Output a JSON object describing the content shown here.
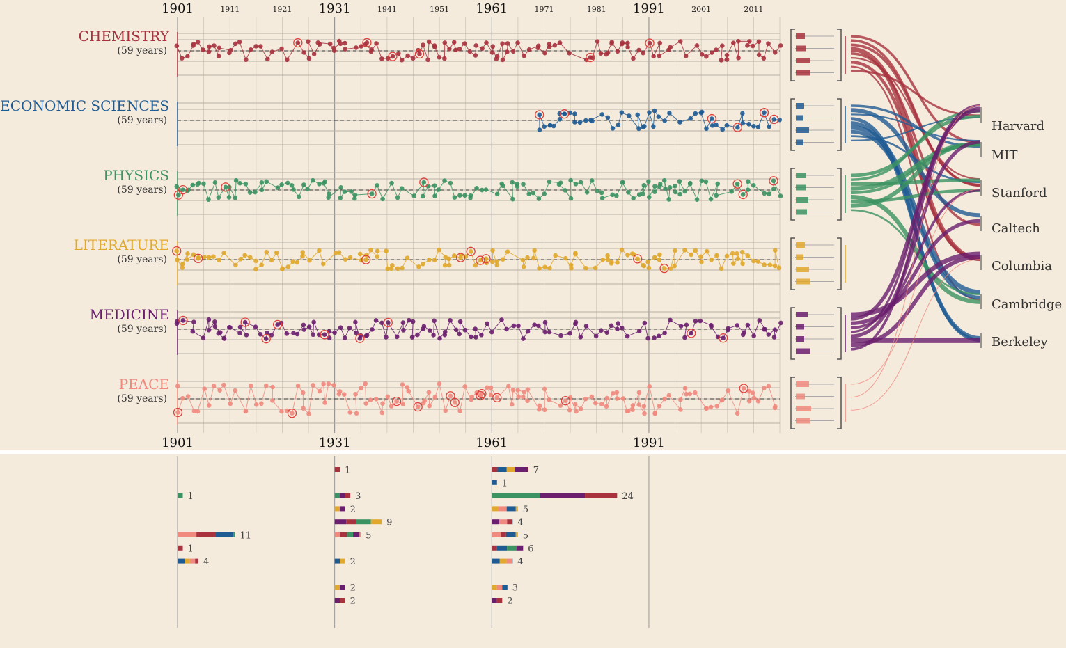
{
  "chart_data": [
    {
      "type": "scatter",
      "year_axis": {
        "start": 1901,
        "end": 2016,
        "major_ticks": [
          "1901",
          "1931",
          "1961",
          "1991"
        ],
        "minor_ticks": [
          "1911",
          "1921",
          "1941",
          "1951",
          "1971",
          "1981",
          "2001",
          "2011"
        ]
      },
      "categories": [
        {
          "name": "CHEMISTRY",
          "subtitle": "(59 years)",
          "color": "#a8323e",
          "start_year": 1901
        },
        {
          "name": "ECONOMIC SCIENCES",
          "subtitle": "(59 years)",
          "color": "#1f5b93",
          "start_year": 1969
        },
        {
          "name": "PHYSICS",
          "subtitle": "(59 years)",
          "color": "#3b9262",
          "start_year": 1901
        },
        {
          "name": "LITERATURE",
          "subtitle": "(59 years)",
          "color": "#e0a82e",
          "start_year": 1901
        },
        {
          "name": "MEDICINE",
          "subtitle": "(59 years)",
          "color": "#6a1f6e",
          "start_year": 1901
        },
        {
          "name": "PEACE",
          "subtitle": "(59 years)",
          "color": "#f08a7e",
          "start_year": 1901
        }
      ]
    },
    {
      "type": "sankey",
      "institutions": [
        "Harvard",
        "MIT",
        "Stanford",
        "Caltech",
        "Columbia",
        "Cambridge",
        "Berkeley"
      ]
    },
    {
      "type": "bar",
      "orientation": "horizontal",
      "columns": [
        "1901",
        "1931",
        "1961"
      ],
      "rows": [
        {
          "values": [
            null,
            1,
            7
          ]
        },
        {
          "values": [
            null,
            null,
            1
          ]
        },
        {
          "values": [
            1,
            3,
            24
          ]
        },
        {
          "values": [
            null,
            2,
            5
          ]
        },
        {
          "values": [
            null,
            9,
            4
          ]
        },
        {
          "values": [
            11,
            5,
            5
          ]
        },
        {
          "values": [
            1,
            null,
            6
          ]
        },
        {
          "values": [
            4,
            2,
            4
          ]
        },
        {
          "values": [
            null,
            null,
            null
          ]
        },
        {
          "values": [
            null,
            2,
            3
          ]
        },
        {
          "values": [
            null,
            2,
            2
          ]
        }
      ]
    }
  ]
}
